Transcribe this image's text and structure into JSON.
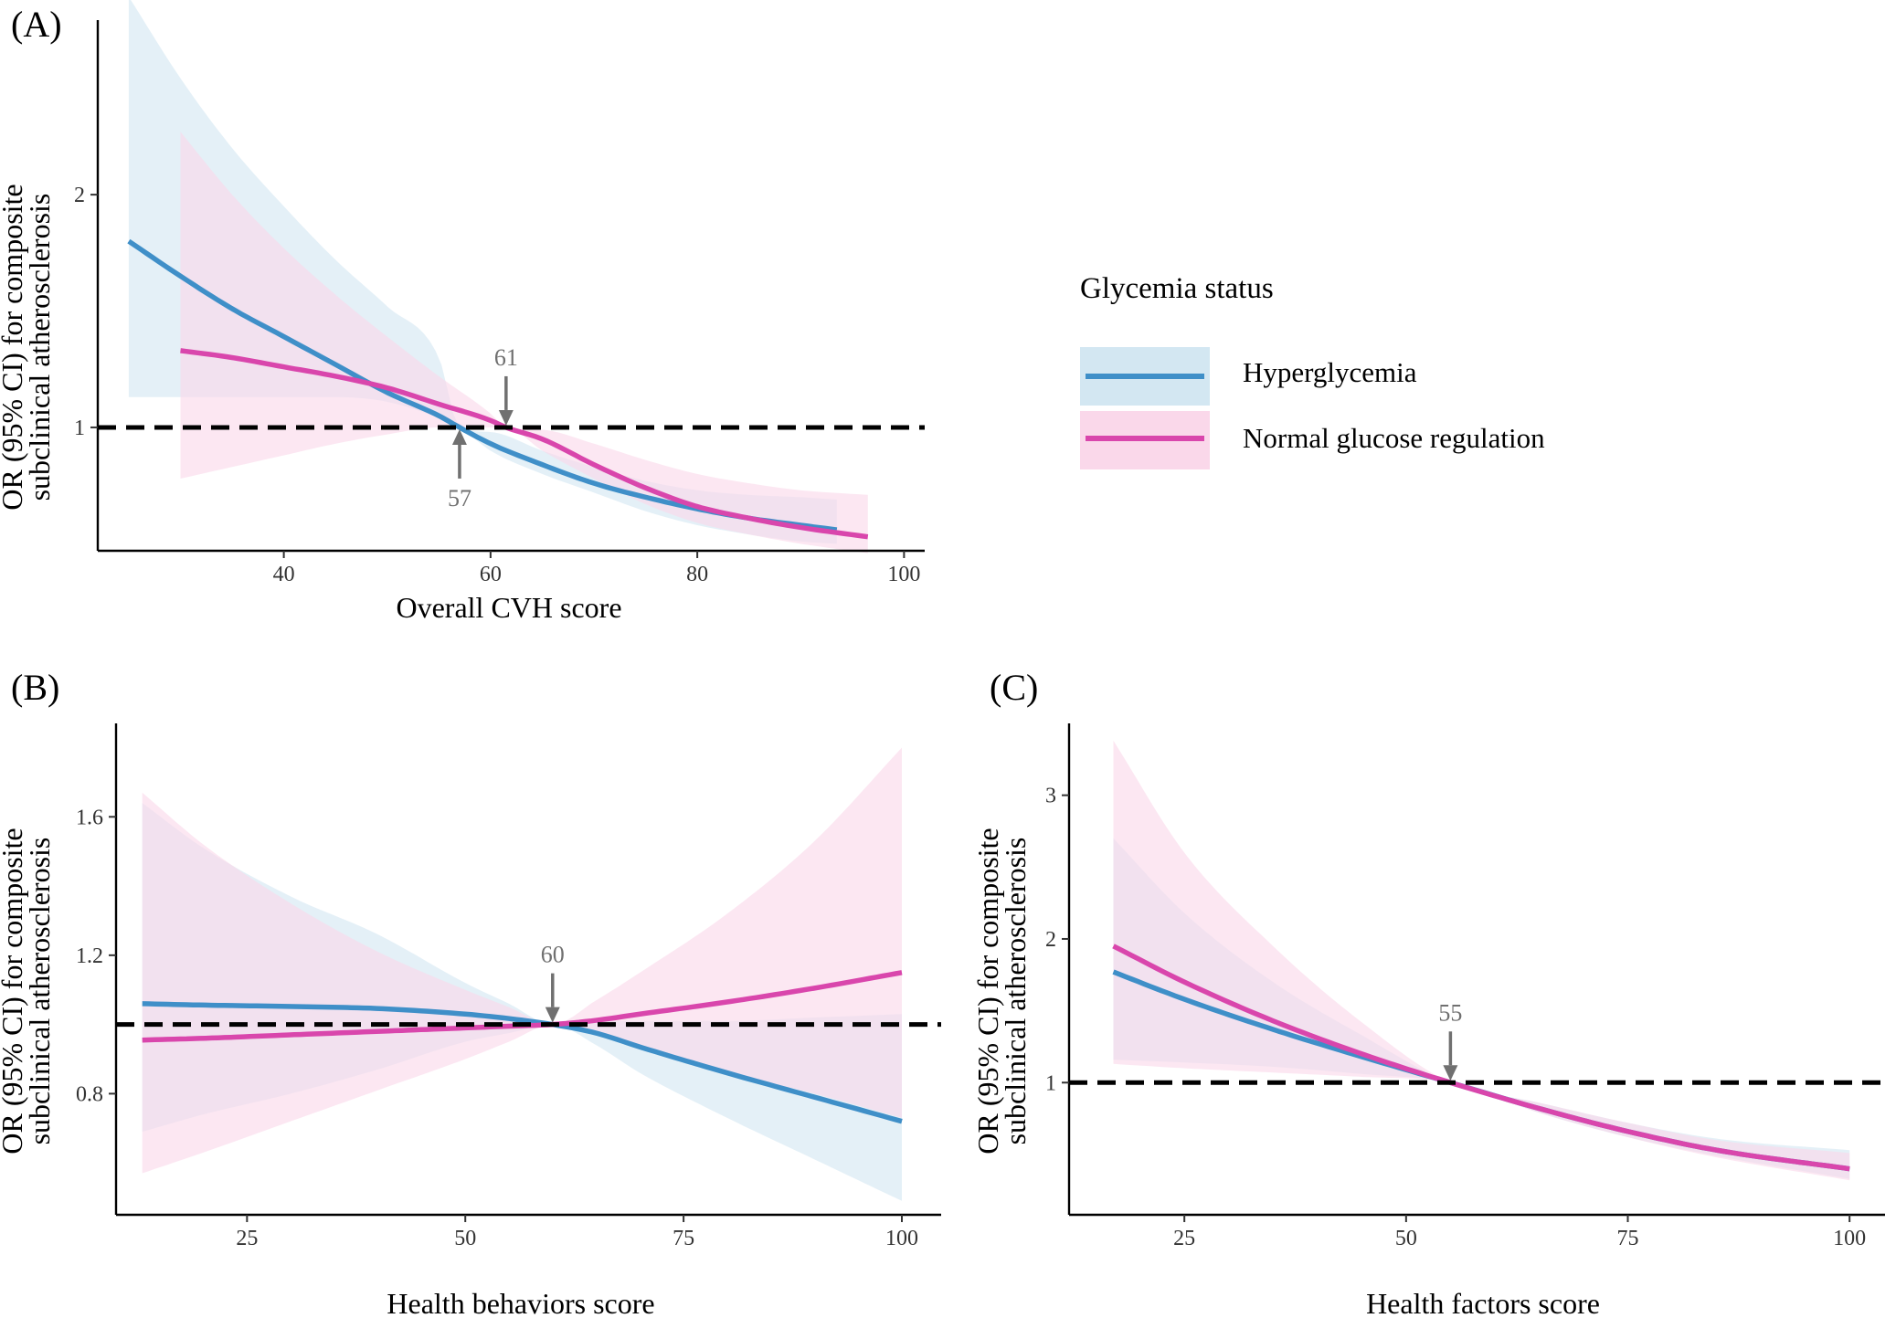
{
  "chart_data": [
    {
      "panel": "(A)",
      "type": "line",
      "xlabel": "Overall CVH score",
      "ylabel": [
        "OR (95% CI) for composite",
        "subclinical atherosclerosis"
      ],
      "xticks": [
        40,
        60,
        80,
        100
      ],
      "yticks": [
        1,
        2
      ],
      "xlim": [
        22,
        102
      ],
      "ylim": [
        0.47,
        2.75
      ],
      "reference_line": 1,
      "annotations": [
        {
          "label": "57",
          "x": 57,
          "y": 1.0,
          "direction": "up",
          "series": "Hyperglycemia"
        },
        {
          "label": "61",
          "x": 61.5,
          "y": 1.0,
          "direction": "down",
          "series": "Normal glucose regulation"
        }
      ],
      "series": [
        {
          "name": "Hyperglycemia",
          "color": "#3f8fc8",
          "band_color": "#d3e7f2",
          "x": [
            25,
            30,
            35,
            40,
            45,
            50,
            55,
            57,
            60,
            65,
            70,
            75,
            80,
            85,
            90,
            93.5
          ],
          "y": [
            1.8,
            1.65,
            1.51,
            1.39,
            1.27,
            1.15,
            1.05,
            1.0,
            0.93,
            0.84,
            0.76,
            0.7,
            0.65,
            0.61,
            0.58,
            0.56
          ],
          "ci_lower": [
            1.13,
            1.13,
            1.13,
            1.13,
            1.13,
            1.11,
            1.04,
            1.0,
            0.9,
            0.8,
            0.72,
            0.64,
            0.58,
            0.54,
            0.51,
            0.5
          ],
          "ci_upper": [
            2.85,
            2.5,
            2.2,
            1.95,
            1.72,
            1.52,
            1.3,
            1.0,
            0.98,
            0.9,
            0.83,
            0.77,
            0.73,
            0.71,
            0.7,
            0.69
          ]
        },
        {
          "name": "Normal glucose regulation",
          "color": "#d946ac",
          "band_color": "#fad8ea",
          "x": [
            30,
            35,
            40,
            45,
            50,
            55,
            60,
            61.5,
            65,
            70,
            75,
            80,
            85,
            90,
            96.5
          ],
          "y": [
            1.33,
            1.3,
            1.26,
            1.22,
            1.17,
            1.1,
            1.03,
            1.0,
            0.95,
            0.84,
            0.74,
            0.66,
            0.61,
            0.57,
            0.53
          ],
          "ci_lower": [
            0.78,
            0.83,
            0.88,
            0.93,
            0.97,
            1.0,
            1.0,
            1.0,
            0.9,
            0.78,
            0.67,
            0.59,
            0.54,
            0.5,
            0.46
          ],
          "ci_upper": [
            2.27,
            2.0,
            1.77,
            1.57,
            1.39,
            1.22,
            1.06,
            1.0,
            0.99,
            0.93,
            0.86,
            0.8,
            0.76,
            0.73,
            0.71
          ]
        }
      ]
    },
    {
      "panel": "(B)",
      "type": "line",
      "xlabel": "Health behaviors score",
      "ylabel": [
        "OR (95% CI) for composite",
        "subclinical atherosclerosis"
      ],
      "xticks": [
        25,
        50,
        75,
        100
      ],
      "yticks": [
        0.8,
        1.2,
        1.6
      ],
      "xlim": [
        10,
        104.5
      ],
      "ylim": [
        0.45,
        1.87
      ],
      "reference_line": 1,
      "annotations": [
        {
          "label": "60",
          "x": 60,
          "y": 1.0,
          "direction": "down"
        }
      ],
      "series": [
        {
          "name": "Hyperglycemia",
          "color": "#3f8fc8",
          "band_color": "#d3e7f2",
          "x": [
            13,
            20,
            30,
            40,
            50,
            55,
            60,
            65,
            70,
            80,
            90,
            100
          ],
          "y": [
            1.06,
            1.056,
            1.052,
            1.046,
            1.03,
            1.017,
            1.0,
            0.975,
            0.935,
            0.86,
            0.79,
            0.72
          ],
          "ci_lower": [
            0.69,
            0.74,
            0.8,
            0.87,
            0.95,
            0.975,
            1.0,
            0.94,
            0.86,
            0.73,
            0.61,
            0.49
          ],
          "ci_upper": [
            1.64,
            1.51,
            1.37,
            1.26,
            1.12,
            1.06,
            1.0,
            1.01,
            1.01,
            1.01,
            1.02,
            1.03
          ]
        },
        {
          "name": "Normal glucose regulation",
          "color": "#d946ac",
          "band_color": "#fad8ea",
          "x": [
            13,
            20,
            30,
            40,
            50,
            55,
            60,
            65,
            70,
            80,
            90,
            100
          ],
          "y": [
            0.955,
            0.96,
            0.97,
            0.98,
            0.99,
            0.995,
            1.0,
            1.012,
            1.03,
            1.065,
            1.105,
            1.15
          ],
          "ci_lower": [
            0.57,
            0.63,
            0.72,
            0.81,
            0.9,
            0.95,
            1.0,
            0.975,
            0.93,
            0.86,
            0.8,
            0.73
          ],
          "ci_upper": [
            1.67,
            1.52,
            1.35,
            1.21,
            1.1,
            1.05,
            1.0,
            1.07,
            1.15,
            1.32,
            1.53,
            1.8
          ]
        }
      ]
    },
    {
      "panel": "(C)",
      "type": "line",
      "xlabel": "Health factors score",
      "ylabel": [
        "OR (95% CI) for composite",
        "subclinical atherosclerosis"
      ],
      "xticks": [
        25,
        50,
        75,
        100
      ],
      "yticks": [
        1,
        2,
        3
      ],
      "xlim": [
        12,
        104
      ],
      "ylim": [
        0.08,
        3.5
      ],
      "reference_line": 1,
      "annotations": [
        {
          "label": "55",
          "x": 55,
          "y": 1.0,
          "direction": "down"
        }
      ],
      "series": [
        {
          "name": "Hyperglycemia",
          "color": "#3f8fc8",
          "band_color": "#d3e7f2",
          "x": [
            17,
            25,
            35,
            45,
            55,
            65,
            75,
            85,
            100
          ],
          "y": [
            1.77,
            1.58,
            1.37,
            1.18,
            1.0,
            0.82,
            0.66,
            0.53,
            0.4
          ],
          "ci_lower": [
            1.16,
            1.14,
            1.11,
            1.06,
            1.0,
            0.79,
            0.62,
            0.49,
            0.33
          ],
          "ci_upper": [
            2.7,
            2.18,
            1.7,
            1.33,
            1.0,
            0.86,
            0.72,
            0.61,
            0.53
          ]
        },
        {
          "name": "Normal glucose regulation",
          "color": "#d946ac",
          "band_color": "#fad8ea",
          "x": [
            17,
            25,
            35,
            45,
            55,
            65,
            75,
            85,
            100
          ],
          "y": [
            1.95,
            1.7,
            1.43,
            1.2,
            1.0,
            0.82,
            0.66,
            0.53,
            0.4
          ],
          "ci_lower": [
            1.13,
            1.1,
            1.07,
            1.04,
            1.0,
            0.79,
            0.62,
            0.48,
            0.32
          ],
          "ci_upper": [
            3.38,
            2.6,
            1.95,
            1.42,
            1.0,
            0.86,
            0.72,
            0.6,
            0.51
          ]
        }
      ]
    }
  ],
  "legend": {
    "title": "Glycemia status",
    "items": [
      {
        "label": "Hyperglycemia",
        "color": "#3f8fc8",
        "band_color": "#d3e7f2"
      },
      {
        "label": "Normal glucose regulation",
        "color": "#d946ac",
        "band_color": "#fad8ea"
      }
    ]
  }
}
